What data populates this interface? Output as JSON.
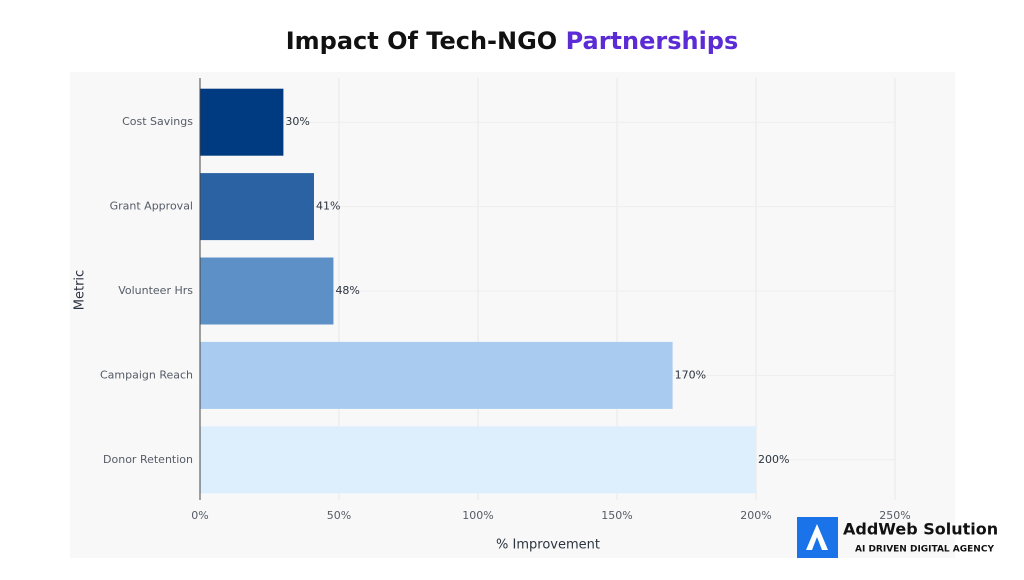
{
  "chart_data": {
    "type": "hbar",
    "title_parts": [
      "Impact Of Tech-NGO",
      "Partnerships"
    ],
    "x_label": "% Improvement",
    "y_label": "Metric",
    "categories": [
      "Cost Savings",
      "Grant Approval",
      "Volunteer Hrs",
      "Campaign Reach",
      "Donor Retention"
    ],
    "values": [
      30,
      41,
      48,
      170,
      200
    ],
    "value_labels": [
      "30%",
      "41%",
      "48%",
      "170%",
      "200%"
    ],
    "colors": [
      "#003a80",
      "#2a62a3",
      "#5e90c8",
      "#a9cbef",
      "#ddeefd"
    ],
    "xlim": [
      0,
      250
    ],
    "xticks": [
      {
        "value": 0,
        "label": "0%"
      },
      {
        "value": 50,
        "label": "50%"
      },
      {
        "value": 100,
        "label": "100%"
      },
      {
        "value": 150,
        "label": "150%"
      },
      {
        "value": 200,
        "label": "200%"
      },
      {
        "value": 250,
        "label": "250%"
      }
    ],
    "grid": true
  },
  "branding": {
    "name": "AddWeb Solution",
    "tagline": "AI DRIVEN DIGITAL AGENCY"
  }
}
